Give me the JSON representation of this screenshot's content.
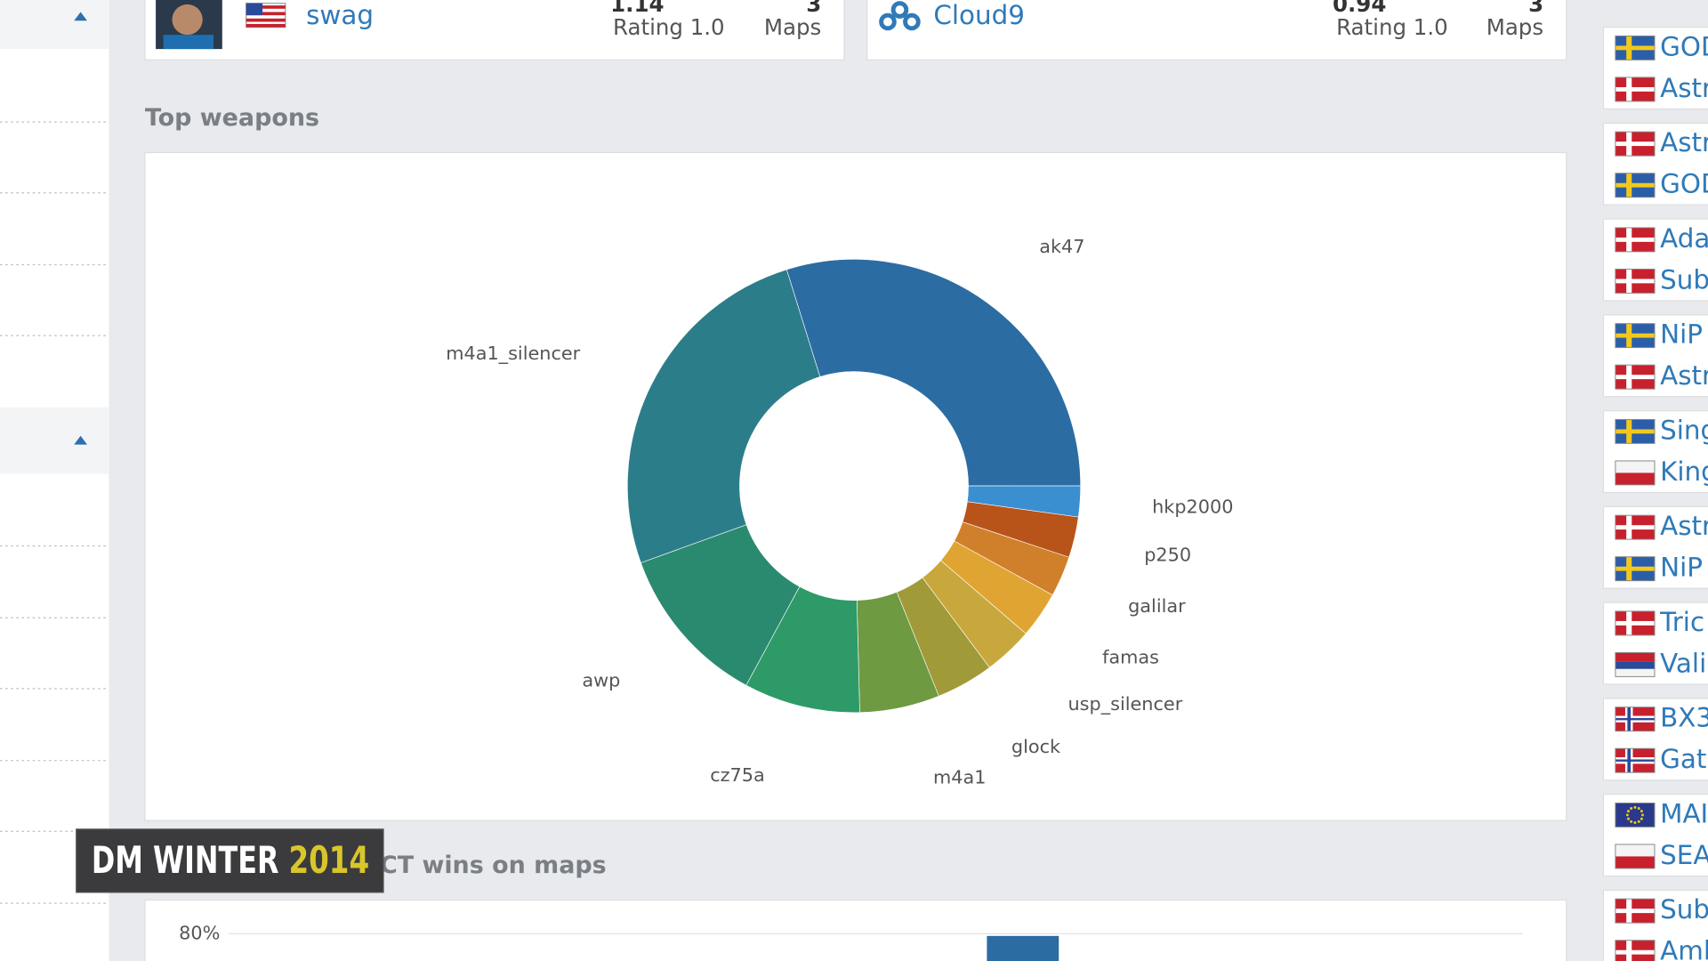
{
  "player_cards": [
    {
      "name": "swag",
      "rating": 1.14,
      "rating_label": "Rating 1.0",
      "maps": 3,
      "maps_label": "Maps"
    },
    {
      "name": "Cloud9",
      "rating": 0.94,
      "rating_label": "Rating 1.0",
      "maps": 3,
      "maps_label": "Maps"
    }
  ],
  "sections": [
    "Top weapons",
    "/ CT wins on maps"
  ],
  "chart_data": {
    "type": "pie",
    "categories": [
      "ak47",
      "hkp2000",
      "p250",
      "galilar",
      "famas",
      "usp_silencer",
      "glock",
      "m4a1",
      "cz75a",
      "awp",
      "m4a1_silencer"
    ],
    "values": [
      29.8,
      2.2,
      2.9,
      2.9,
      3.3,
      3.5,
      4.1,
      5.7,
      8.3,
      11.6,
      25.7
    ],
    "colors": [
      "#2b6ca3",
      "#3a8fd0",
      "#b8541a",
      "#d0802a",
      "#e0a432",
      "#c8a83c",
      "#a09a38",
      "#6e9a42",
      "#2e9a68",
      "#2a8a70",
      "#2c7d8a"
    ]
  },
  "bar_chart": {
    "yticks": [
      {
        "value": 80,
        "label": "80%"
      }
    ]
  },
  "sidebar_matches": [
    [
      "GOD",
      "Astr"
    ],
    [
      "Astr",
      "GOD"
    ],
    [
      "Ada",
      "Sub"
    ],
    [
      "NiP",
      "Astr"
    ],
    [
      "Sing",
      "King"
    ],
    [
      "Astr",
      "NiP"
    ],
    [
      "Tric",
      "Vali"
    ],
    [
      "BX3",
      "Gat"
    ],
    [
      "MAI",
      "SEA"
    ],
    [
      "Sub",
      "Aml"
    ]
  ],
  "overlay": {
    "brand": "DM WINTER",
    "year": "2014"
  }
}
